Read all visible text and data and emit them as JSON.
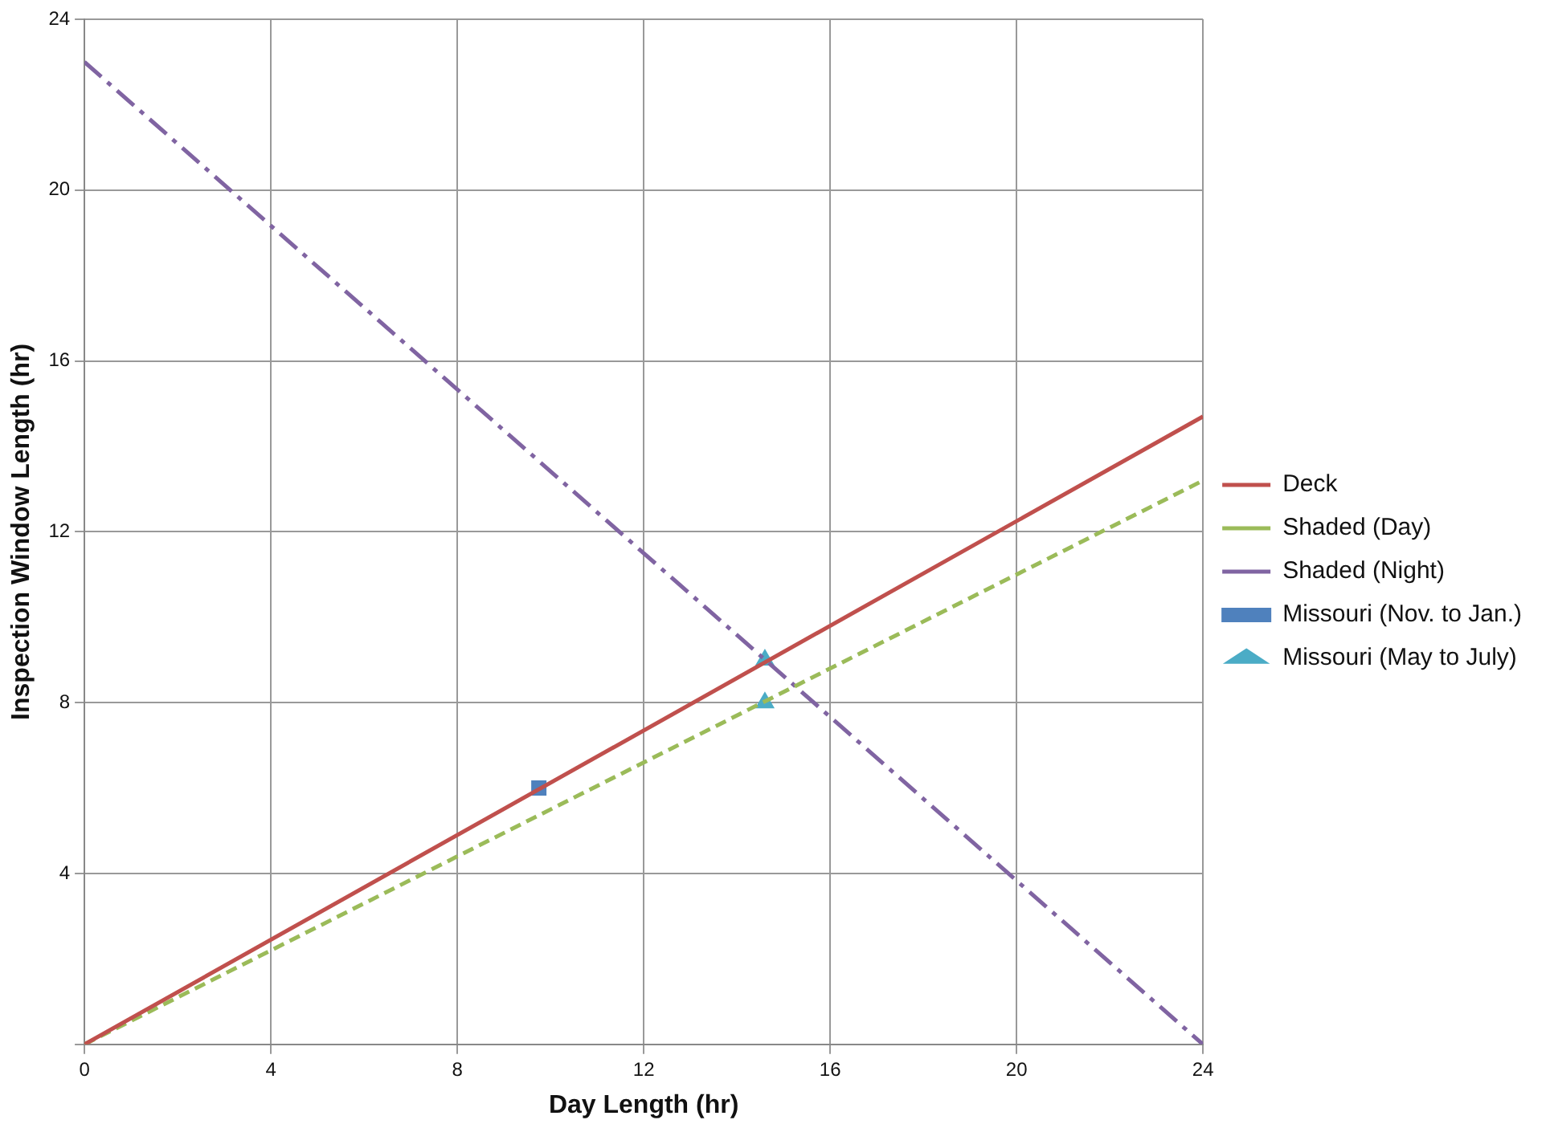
{
  "chart_data": {
    "type": "line",
    "xlabel": "Day Length (hr)",
    "ylabel": "Inspection Window Length (hr)",
    "xlim": [
      0,
      24
    ],
    "xticks": [
      0,
      4,
      8,
      12,
      16,
      20,
      24
    ],
    "ylim": [
      0,
      24
    ],
    "yticks": [
      {
        "value": 0,
        "label": null
      },
      4,
      8,
      12,
      16,
      20,
      24
    ],
    "grid": true,
    "legend": "right",
    "marker": "none",
    "series": [
      {
        "name": "Deck",
        "color": "#c0504d",
        "line_style": "solid",
        "x": [
          0,
          24
        ],
        "values": [
          0,
          14.7
        ]
      },
      {
        "name": "Shaded (Day)",
        "color": "#9bbb59",
        "line_style": "dashed",
        "x": [
          0,
          24
        ],
        "values": [
          0,
          13.2
        ]
      },
      {
        "name": "Shaded (Night)",
        "color": "#8064a2",
        "line_style": "dashdot",
        "x": [
          0,
          24
        ],
        "values": [
          23,
          0
        ]
      },
      {
        "name": "Missouri (Nov. to Jan.)",
        "type": "scatter",
        "marker": "square",
        "color": "#4f81bd",
        "x": [
          9.75
        ],
        "values": [
          6
        ]
      },
      {
        "name": "Missouri (May to July)",
        "type": "scatter",
        "marker": "triangle",
        "color": "#4bacc6",
        "x": [
          14.6,
          14.6
        ],
        "values": [
          9,
          8
        ]
      }
    ]
  }
}
